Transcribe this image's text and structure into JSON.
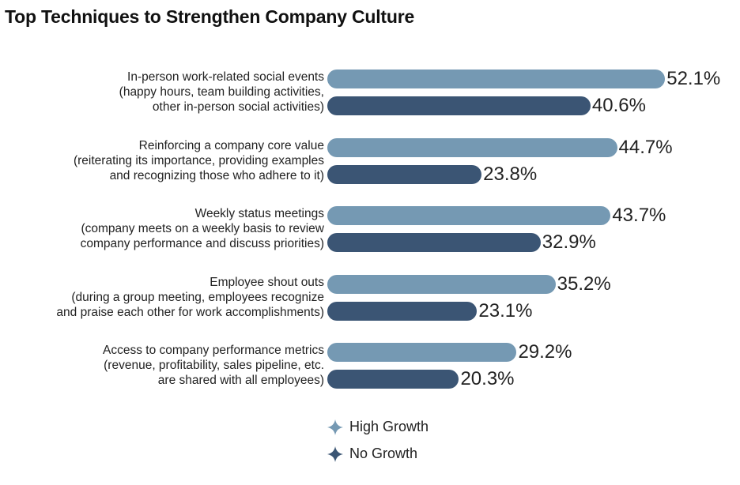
{
  "title": "Top Techniques to Strengthen Company Culture",
  "colors": {
    "high": "#7599b3",
    "none": "#3b5574"
  },
  "chart_data": {
    "type": "bar",
    "orientation": "horizontal",
    "title": "Top Techniques to Strengthen Company Culture",
    "categories": [
      [
        "In-person work-related social events",
        "(happy hours, team building activities,",
        "other in-person social activities)"
      ],
      [
        "Reinforcing a company core value",
        "(reiterating its importance, providing examples",
        "and recognizing those who adhere to it)"
      ],
      [
        "Weekly status meetings",
        "(company meets on a weekly basis to review",
        "company performance and discuss priorities)"
      ],
      [
        "Employee shout outs",
        "(during a group meeting, employees recognize",
        "and praise each other for work accomplishments)"
      ],
      [
        "Access to company performance metrics",
        "(revenue, profitability, sales pipeline, etc.",
        "are shared with all employees)"
      ]
    ],
    "series": [
      {
        "name": "High Growth",
        "values": [
          52.1,
          44.7,
          43.7,
          35.2,
          29.2
        ],
        "labels": [
          "52.1%",
          "44.7%",
          "43.7%",
          "35.2%",
          "29.2%"
        ]
      },
      {
        "name": "No Growth",
        "values": [
          40.6,
          23.8,
          32.9,
          23.1,
          20.3
        ],
        "labels": [
          "40.6%",
          "23.8%",
          "32.9%",
          "23.1%",
          "20.3%"
        ]
      }
    ],
    "legend": "bottom",
    "grid": false
  }
}
